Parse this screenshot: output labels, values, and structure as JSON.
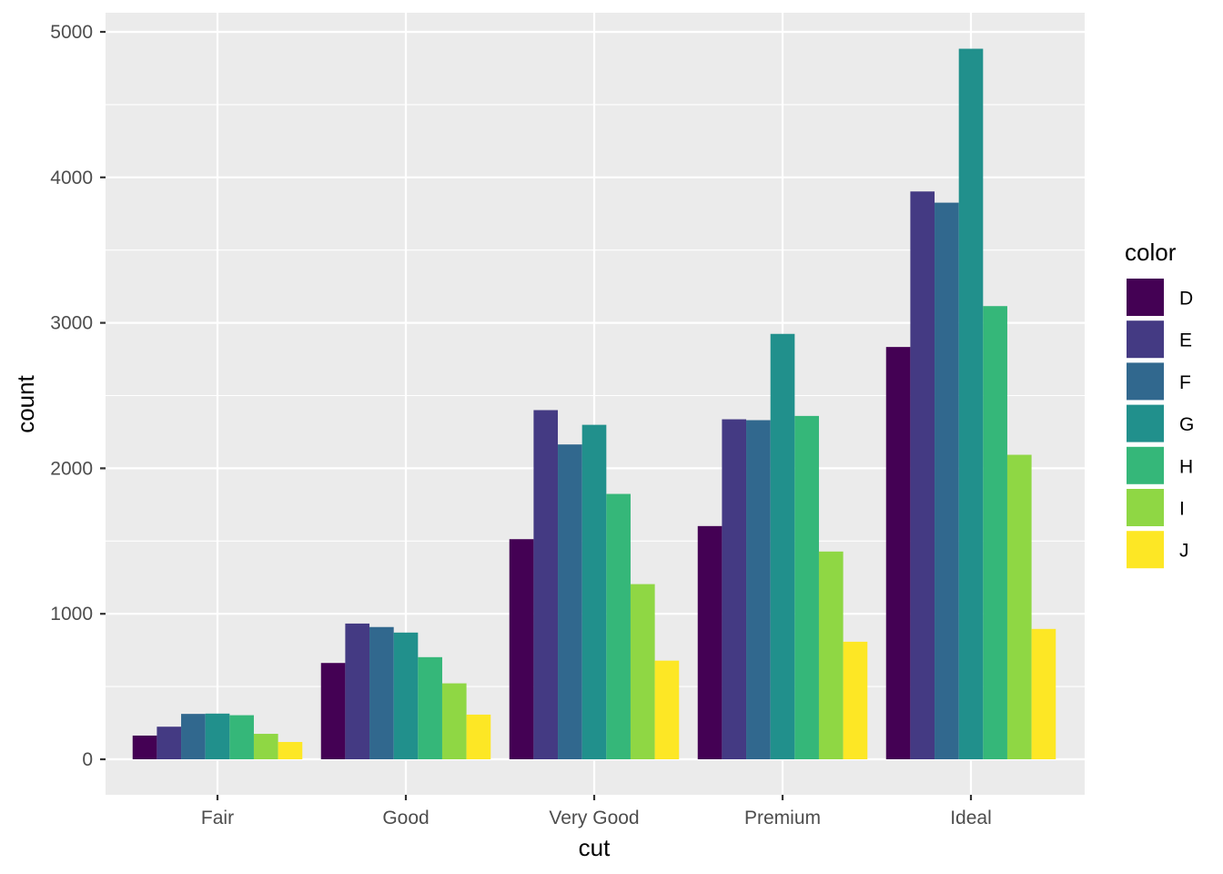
{
  "chart_data": {
    "type": "bar",
    "position": "dodge",
    "xlabel": "cut",
    "ylabel": "count",
    "categories": [
      "Fair",
      "Good",
      "Very Good",
      "Premium",
      "Ideal"
    ],
    "yticks": [
      0,
      1000,
      2000,
      3000,
      4000,
      5000
    ],
    "ylim": [
      -240,
      5130
    ],
    "grid": true,
    "legend": {
      "title": "color",
      "placement": "right"
    },
    "series": [
      {
        "name": "D",
        "color": "#440154",
        "values": [
          163,
          662,
          1513,
          1603,
          2834
        ]
      },
      {
        "name": "E",
        "color": "#443A83",
        "values": [
          224,
          933,
          2400,
          2337,
          3903
        ]
      },
      {
        "name": "F",
        "color": "#31688E",
        "values": [
          312,
          909,
          2164,
          2331,
          3826
        ]
      },
      {
        "name": "G",
        "color": "#21908C",
        "values": [
          314,
          871,
          2299,
          2924,
          4884
        ]
      },
      {
        "name": "H",
        "color": "#35B779",
        "values": [
          303,
          702,
          1824,
          2360,
          3115
        ]
      },
      {
        "name": "I",
        "color": "#8FD744",
        "values": [
          175,
          522,
          1204,
          1428,
          2093
        ]
      },
      {
        "name": "J",
        "color": "#FDE725",
        "values": [
          119,
          307,
          678,
          808,
          896
        ]
      }
    ]
  }
}
